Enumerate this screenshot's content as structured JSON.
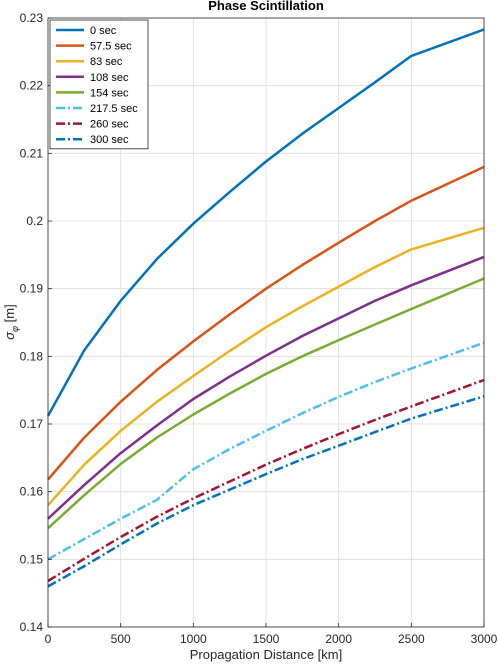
{
  "chart_data": {
    "type": "line",
    "title": "Phase Scintillation",
    "xlabel": "Propagation Distance [km]",
    "ylabel": "σ_φ [m]",
    "ylabel_base": "σ",
    "ylabel_sub": "φ",
    "ylabel_unit": " [m]",
    "xlim": [
      0,
      3000
    ],
    "ylim": [
      0.14,
      0.23
    ],
    "xticks": [
      0,
      500,
      1000,
      1500,
      2000,
      2500,
      3000
    ],
    "yticks": [
      0.14,
      0.15,
      0.16,
      0.17,
      0.18,
      0.19,
      0.2,
      0.21,
      0.22,
      0.23
    ],
    "ytick_labels": [
      "0.14",
      "0.15",
      "0.16",
      "0.17",
      "0.18",
      "0.19",
      "0.2",
      "0.21",
      "0.22",
      "0.23"
    ],
    "grid": true,
    "legend_position": "top-left",
    "x": [
      0,
      250,
      500,
      750,
      1000,
      1250,
      1500,
      1750,
      2000,
      2250,
      2500,
      3000
    ],
    "series": [
      {
        "name": "0 sec",
        "color": "#0072BD",
        "dash": "solid",
        "values": [
          0.1712,
          0.1809,
          0.1882,
          0.1944,
          0.1996,
          0.2043,
          0.2088,
          0.2129,
          0.2167,
          0.2205,
          0.2244,
          0.2283
        ]
      },
      {
        "name": "57.5 sec",
        "color": "#D95319",
        "dash": "solid",
        "values": [
          0.1618,
          0.168,
          0.1733,
          0.178,
          0.1822,
          0.1862,
          0.19,
          0.1935,
          0.1968,
          0.2,
          0.203,
          0.208
        ]
      },
      {
        "name": "83 sec",
        "color": "#EDB120",
        "dash": "solid",
        "values": [
          0.158,
          0.164,
          0.169,
          0.1733,
          0.1771,
          0.1808,
          0.1843,
          0.1874,
          0.1903,
          0.1932,
          0.1958,
          0.199
        ]
      },
      {
        "name": "108 sec",
        "color": "#7E2F8E",
        "dash": "solid",
        "values": [
          0.156,
          0.161,
          0.1657,
          0.1698,
          0.1737,
          0.177,
          0.1801,
          0.183,
          0.1856,
          0.1882,
          0.1905,
          0.1947
        ]
      },
      {
        "name": "154 sec",
        "color": "#77AC30",
        "dash": "solid",
        "values": [
          0.1546,
          0.1595,
          0.1641,
          0.168,
          0.1714,
          0.1745,
          0.1774,
          0.18,
          0.1824,
          0.1847,
          0.187,
          0.1915
        ]
      },
      {
        "name": "217.5 sec",
        "color": "#4DBEEE",
        "dash": "dashdot",
        "values": [
          0.15,
          0.153,
          0.156,
          0.1588,
          0.1633,
          0.1663,
          0.169,
          0.1716,
          0.174,
          0.1762,
          0.1782,
          0.182
        ]
      },
      {
        "name": "260 sec",
        "color": "#A2142F",
        "dash": "dashdot",
        "values": [
          0.1468,
          0.1501,
          0.1533,
          0.1563,
          0.159,
          0.1615,
          0.164,
          0.1663,
          0.1685,
          0.1706,
          0.1726,
          0.1765
        ]
      },
      {
        "name": "300 sec",
        "color": "#0072BD",
        "dash": "dashdot",
        "values": [
          0.146,
          0.149,
          0.1522,
          0.1553,
          0.158,
          0.1603,
          0.1626,
          0.1648,
          0.1668,
          0.1688,
          0.1708,
          0.1741
        ]
      }
    ]
  }
}
